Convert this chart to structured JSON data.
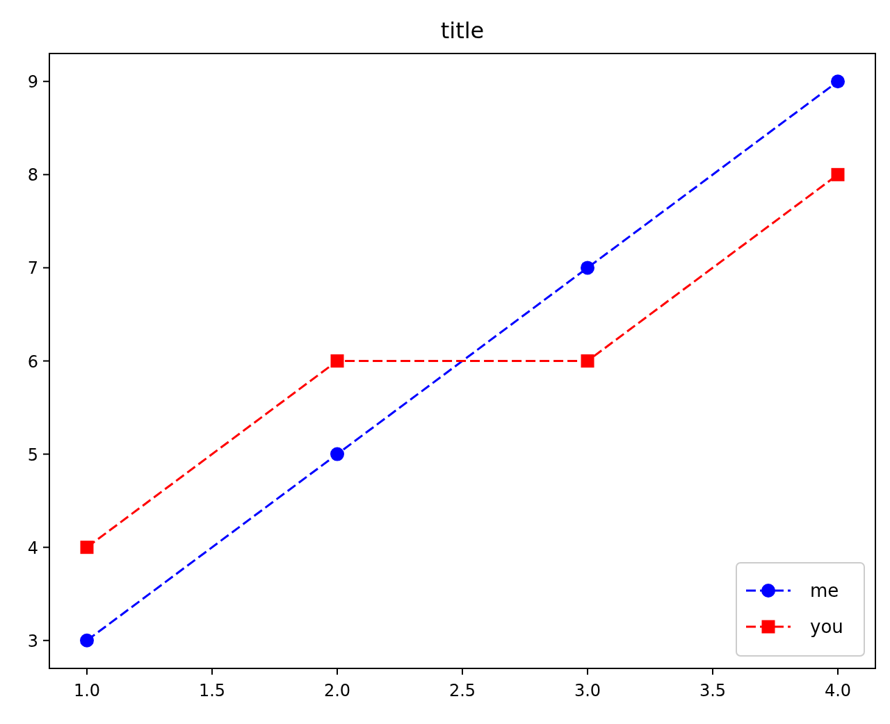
{
  "chart_data": {
    "type": "line",
    "title": "title",
    "x": [
      1,
      2,
      3,
      4
    ],
    "series": [
      {
        "name": "me",
        "color": "#0000ff",
        "values": [
          3,
          5,
          7,
          9
        ],
        "marker": "circle"
      },
      {
        "name": "you",
        "color": "#ff0000",
        "values": [
          4,
          6,
          6,
          8
        ],
        "marker": "square"
      }
    ],
    "xlim": [
      0.85,
      4.15
    ],
    "xticks": [
      {
        "value": 1,
        "label": "1.0"
      },
      {
        "value": 1.5,
        "label": "1.5"
      },
      {
        "value": 2,
        "label": "2.0"
      },
      {
        "value": 2.5,
        "label": "2.5"
      },
      {
        "value": 3,
        "label": "3.0"
      },
      {
        "value": 3.5,
        "label": "3.5"
      },
      {
        "value": 4,
        "label": "4.0"
      }
    ],
    "ylim": [
      2.7,
      9.3
    ],
    "yticks": [
      3,
      4,
      5,
      6,
      7,
      8,
      9
    ],
    "grid": false,
    "legend": "bottom right",
    "line_style": "dashed"
  }
}
